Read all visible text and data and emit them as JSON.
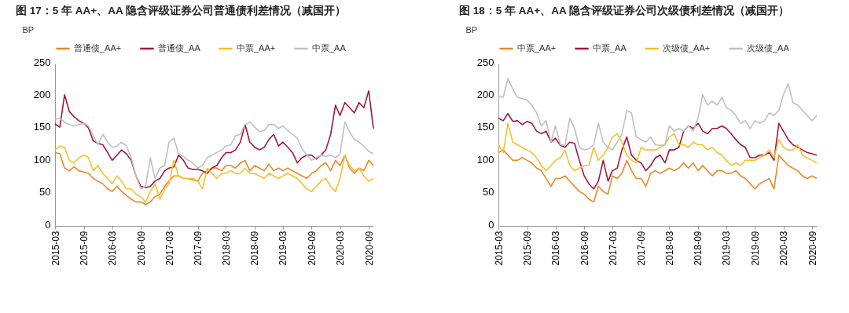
{
  "chart_data": [
    {
      "type": "line",
      "title": "图 17：5 年 AA+、AA 隐含评级证券公司普通债利差情况（减国开）",
      "ylabel": "BP",
      "legend": "top",
      "line_style": "solid",
      "marker": "none",
      "grid": false,
      "xlim": [
        "2015-03",
        "2020-10"
      ],
      "xticks": [
        "2015-03",
        "2015-09",
        "2016-03",
        "2016-09",
        "2017-03",
        "2017-09",
        "2018-03",
        "2018-09",
        "2019-03",
        "2019-09",
        "2020-03",
        "2020-09"
      ],
      "ylim": [
        0,
        250
      ],
      "yticks": [
        0,
        50,
        100,
        150,
        200,
        250
      ],
      "x": [
        "2015-03",
        "2015-04",
        "2015-05",
        "2015-06",
        "2015-07",
        "2015-08",
        "2015-09",
        "2015-10",
        "2015-11",
        "2015-12",
        "2016-01",
        "2016-02",
        "2016-03",
        "2016-04",
        "2016-05",
        "2016-06",
        "2016-07",
        "2016-08",
        "2016-09",
        "2016-10",
        "2016-11",
        "2016-12",
        "2017-01",
        "2017-02",
        "2017-03",
        "2017-04",
        "2017-05",
        "2017-06",
        "2017-07",
        "2017-08",
        "2017-09",
        "2017-10",
        "2017-11",
        "2017-12",
        "2018-01",
        "2018-02",
        "2018-03",
        "2018-04",
        "2018-05",
        "2018-06",
        "2018-07",
        "2018-08",
        "2018-09",
        "2018-10",
        "2018-11",
        "2018-12",
        "2019-01",
        "2019-02",
        "2019-03",
        "2019-04",
        "2019-05",
        "2019-06",
        "2019-07",
        "2019-08",
        "2019-09",
        "2019-10",
        "2019-11",
        "2019-12",
        "2020-01",
        "2020-02",
        "2020-03",
        "2020-04",
        "2020-05",
        "2020-06",
        "2020-07",
        "2020-08",
        "2020-09",
        "2020-10"
      ],
      "series": [
        {
          "name": "普通债_AA+",
          "color": "#e8892b",
          "values": [
            113,
            111,
            89,
            85,
            91,
            85,
            83,
            81,
            73,
            69,
            65,
            57,
            53,
            61,
            53,
            47,
            41,
            37,
            37,
            33,
            37,
            45,
            49,
            61,
            69,
            77,
            77,
            73,
            73,
            71,
            69,
            81,
            85,
            89,
            89,
            85,
            93,
            93,
            89,
            97,
            101,
            85,
            93,
            89,
            85,
            95,
            85,
            89,
            85,
            89,
            85,
            81,
            77,
            73,
            81,
            85,
            93,
            97,
            85,
            101,
            93,
            109,
            89,
            81,
            89,
            85,
            101,
            93
          ]
        },
        {
          "name": "普通债_AA",
          "color": "#a3173f",
          "values": [
            157,
            152,
            202,
            176,
            168,
            162,
            158,
            151,
            131,
            127,
            125,
            113,
            101,
            109,
            117,
            111,
            101,
            77,
            61,
            59,
            61,
            69,
            73,
            85,
            89,
            91,
            109,
            101,
            89,
            87,
            87,
            85,
            81,
            89,
            93,
            105,
            113,
            113,
            117,
            129,
            156,
            129,
            121,
            117,
            121,
            133,
            141,
            123,
            129,
            121,
            113,
            97,
            105,
            109,
            109,
            103,
            109,
            117,
            141,
            186,
            170,
            190,
            182,
            174,
            190,
            182,
            208,
            150
          ]
        },
        {
          "name": "中票_AA+",
          "color": "#f6c02c",
          "values": [
            117,
            123,
            121,
            101,
            97,
            105,
            109,
            105,
            85,
            93,
            81,
            73,
            65,
            77,
            69,
            57,
            57,
            49,
            45,
            37,
            53,
            65,
            41,
            57,
            65,
            101,
            77,
            73,
            73,
            73,
            69,
            57,
            89,
            81,
            73,
            81,
            81,
            85,
            81,
            81,
            89,
            81,
            81,
            77,
            73,
            81,
            77,
            73,
            77,
            81,
            77,
            73,
            65,
            57,
            53,
            61,
            69,
            73,
            61,
            53,
            73,
            109,
            93,
            85,
            89,
            77,
            69,
            73
          ]
        },
        {
          "name": "中票_AA",
          "color": "#c0c0c0",
          "values": [
            164,
            166,
            160,
            156,
            154,
            156,
            158,
            154,
            139,
            125,
            141,
            129,
            121,
            123,
            129,
            123,
            105,
            77,
            57,
            61,
            105,
            73,
            89,
            93,
            129,
            135,
            111,
            107,
            101,
            97,
            89,
            93,
            105,
            109,
            113,
            117,
            123,
            125,
            139,
            141,
            156,
            160,
            152,
            145,
            147,
            156,
            156,
            150,
            154,
            147,
            141,
            135,
            119,
            109,
            101,
            105,
            109,
            107,
            109,
            105,
            111,
            160,
            145,
            133,
            129,
            123,
            115,
            111
          ]
        }
      ]
    },
    {
      "type": "line",
      "title": "图 18：5 年 AA+、AA 隐含评级证券公司次级债利差情况（减国开）",
      "ylabel": "BP",
      "legend": "top",
      "line_style": "solid",
      "marker": "none",
      "grid": false,
      "xlim": [
        "2015-03",
        "2020-10"
      ],
      "xticks": [
        "2015-03",
        "2015-09",
        "2016-03",
        "2016-09",
        "2017-03",
        "2017-09",
        "2018-03",
        "2018-09",
        "2019-03",
        "2019-09",
        "2020-03",
        "2020-09"
      ],
      "ylim": [
        0,
        250
      ],
      "yticks": [
        0,
        50,
        100,
        150,
        200,
        250
      ],
      "x": [
        "2015-03",
        "2015-04",
        "2015-05",
        "2015-06",
        "2015-07",
        "2015-08",
        "2015-09",
        "2015-10",
        "2015-11",
        "2015-12",
        "2016-01",
        "2016-02",
        "2016-03",
        "2016-04",
        "2016-05",
        "2016-06",
        "2016-07",
        "2016-08",
        "2016-09",
        "2016-10",
        "2016-11",
        "2016-12",
        "2017-01",
        "2017-02",
        "2017-03",
        "2017-04",
        "2017-05",
        "2017-06",
        "2017-07",
        "2017-08",
        "2017-09",
        "2017-10",
        "2017-11",
        "2017-12",
        "2018-01",
        "2018-02",
        "2018-03",
        "2018-04",
        "2018-05",
        "2018-06",
        "2018-07",
        "2018-08",
        "2018-09",
        "2018-10",
        "2018-11",
        "2018-12",
        "2019-01",
        "2019-02",
        "2019-03",
        "2019-04",
        "2019-05",
        "2019-06",
        "2019-07",
        "2019-08",
        "2019-09",
        "2019-10",
        "2019-11",
        "2019-12",
        "2020-01",
        "2020-02",
        "2020-03",
        "2020-04",
        "2020-05",
        "2020-06",
        "2020-07",
        "2020-08",
        "2020-09",
        "2020-10"
      ],
      "series": [
        {
          "name": "中票_AA+",
          "color": "#e8892b",
          "values": [
            113,
            117,
            109,
            101,
            101,
            105,
            101,
            97,
            89,
            85,
            73,
            61,
            73,
            73,
            77,
            69,
            61,
            53,
            49,
            41,
            37,
            61,
            53,
            49,
            77,
            73,
            81,
            101,
            85,
            73,
            73,
            61,
            81,
            85,
            81,
            85,
            89,
            85,
            89,
            97,
            89,
            97,
            85,
            93,
            85,
            77,
            85,
            85,
            81,
            81,
            85,
            77,
            73,
            65,
            57,
            65,
            69,
            73,
            57,
            109,
            101,
            93,
            89,
            85,
            77,
            73,
            77,
            73
          ]
        },
        {
          "name": "中票_AA",
          "color": "#a3173f",
          "values": [
            166,
            162,
            173,
            161,
            162,
            156,
            161,
            158,
            146,
            142,
            146,
            129,
            135,
            124,
            121,
            129,
            127,
            101,
            77,
            65,
            57,
            69,
            101,
            69,
            85,
            89,
            117,
            137,
            109,
            101,
            97,
            85,
            93,
            105,
            109,
            97,
            117,
            117,
            121,
            146,
            154,
            150,
            158,
            146,
            142,
            150,
            150,
            154,
            150,
            142,
            133,
            125,
            121,
            105,
            105,
            109,
            109,
            113,
            101,
            158,
            146,
            133,
            125,
            121,
            117,
            113,
            111,
            109
          ]
        },
        {
          "name": "次级债_AA+",
          "color": "#f6c02c",
          "values": [
            125,
            113,
            158,
            129,
            125,
            121,
            117,
            113,
            105,
            93,
            85,
            93,
            101,
            105,
            117,
            93,
            85,
            89,
            93,
            93,
            121,
            101,
            109,
            121,
            137,
            142,
            129,
            109,
            101,
            97,
            121,
            117,
            117,
            117,
            121,
            125,
            137,
            142,
            125,
            125,
            121,
            129,
            125,
            125,
            117,
            121,
            113,
            109,
            101,
            93,
            97,
            93,
            101,
            101,
            101,
            105,
            109,
            117,
            105,
            133,
            121,
            117,
            117,
            125,
            109,
            105,
            101,
            97
          ]
        },
        {
          "name": "次级债_AA",
          "color": "#c0c0c0",
          "values": [
            200,
            198,
            227,
            211,
            198,
            196,
            194,
            186,
            174,
            154,
            162,
            129,
            154,
            125,
            124,
            166,
            150,
            121,
            117,
            119,
            125,
            158,
            129,
            121,
            117,
            129,
            141,
            178,
            174,
            137,
            133,
            129,
            137,
            125,
            124,
            125,
            154,
            146,
            150,
            146,
            154,
            146,
            166,
            202,
            186,
            192,
            186,
            198,
            182,
            178,
            170,
            158,
            162,
            150,
            162,
            158,
            162,
            174,
            170,
            178,
            202,
            219,
            190,
            186,
            178,
            170,
            162,
            170
          ]
        }
      ]
    }
  ]
}
